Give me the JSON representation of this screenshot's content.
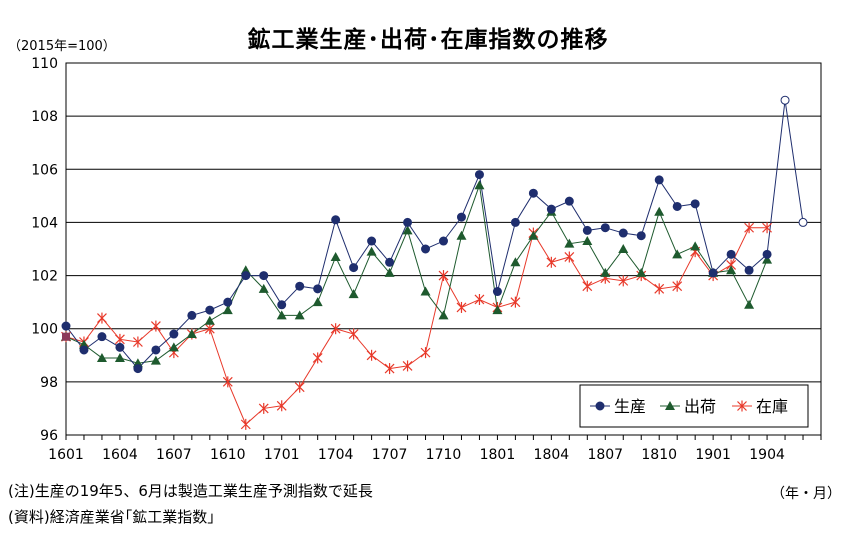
{
  "title": "鉱工業生産･出荷･在庫指数の推移",
  "unit_label": "（2015年=100）",
  "period_label": "（年・月）",
  "notes": {
    "note1": "(注)生産の19年5、6月は製造工業生産予測指数で延長",
    "note2": "(資料)経済産業省｢鉱工業指数｣"
  },
  "colors": {
    "production": "#1f2e6e",
    "shipment": "#1e5a2e",
    "inventory": "#e8392a",
    "first_point_marker": "#8c3a5a"
  },
  "chart_data": {
    "type": "line",
    "xlabel": "",
    "ylabel": "",
    "ylim": [
      96,
      110
    ],
    "yticks": [
      96,
      98,
      100,
      102,
      104,
      106,
      108,
      110
    ],
    "grid": true,
    "legend_position": "bottom-right",
    "x_tick_labels": [
      "1601",
      "1604",
      "1607",
      "1610",
      "1701",
      "1704",
      "1707",
      "1710",
      "1801",
      "1804",
      "1807",
      "1810",
      "1901",
      "1904"
    ],
    "x": [
      "1601",
      "1602",
      "1603",
      "1604",
      "1605",
      "1606",
      "1607",
      "1608",
      "1609",
      "1610",
      "1611",
      "1612",
      "1701",
      "1702",
      "1703",
      "1704",
      "1705",
      "1706",
      "1707",
      "1708",
      "1709",
      "1710",
      "1711",
      "1712",
      "1801",
      "1802",
      "1803",
      "1804",
      "1805",
      "1806",
      "1807",
      "1808",
      "1809",
      "1810",
      "1811",
      "1812",
      "1901",
      "1902",
      "1903",
      "1904",
      "1905",
      "1906"
    ],
    "series": [
      {
        "name": "生産",
        "marker": "circle",
        "forecast_points": 2,
        "values": [
          100.1,
          99.2,
          99.7,
          99.3,
          98.5,
          99.2,
          99.8,
          100.5,
          100.7,
          101.0,
          102.0,
          102.0,
          100.9,
          101.6,
          101.5,
          104.1,
          102.3,
          103.3,
          102.5,
          104.0,
          103.0,
          103.3,
          104.2,
          105.8,
          101.4,
          104.0,
          105.1,
          104.5,
          104.8,
          103.7,
          103.8,
          103.6,
          103.5,
          105.6,
          104.6,
          104.7,
          102.1,
          102.8,
          102.2,
          102.8,
          108.6,
          104.0
        ]
      },
      {
        "name": "出荷",
        "marker": "triangle",
        "values": [
          99.7,
          99.4,
          98.9,
          98.9,
          98.7,
          98.8,
          99.3,
          99.8,
          100.3,
          100.7,
          102.2,
          101.5,
          100.5,
          100.5,
          101.0,
          102.7,
          101.3,
          102.9,
          102.1,
          103.7,
          101.4,
          100.5,
          103.5,
          105.4,
          100.7,
          102.5,
          103.5,
          104.4,
          103.2,
          103.3,
          102.1,
          103.0,
          102.1,
          104.4,
          102.8,
          103.1,
          102.1,
          102.2,
          100.9,
          102.6,
          null,
          null
        ]
      },
      {
        "name": "在庫",
        "marker": "asterisk",
        "values": [
          99.7,
          99.5,
          100.4,
          99.6,
          99.5,
          100.1,
          99.1,
          99.8,
          100.0,
          98.0,
          96.4,
          97.0,
          97.1,
          97.8,
          98.9,
          100.0,
          99.8,
          99.0,
          98.5,
          98.6,
          99.1,
          102.0,
          100.8,
          101.1,
          100.8,
          101.0,
          103.6,
          102.5,
          102.7,
          101.6,
          101.9,
          101.8,
          102.0,
          101.5,
          101.6,
          102.9,
          102.0,
          102.4,
          103.8,
          103.8,
          null,
          null
        ]
      }
    ]
  }
}
